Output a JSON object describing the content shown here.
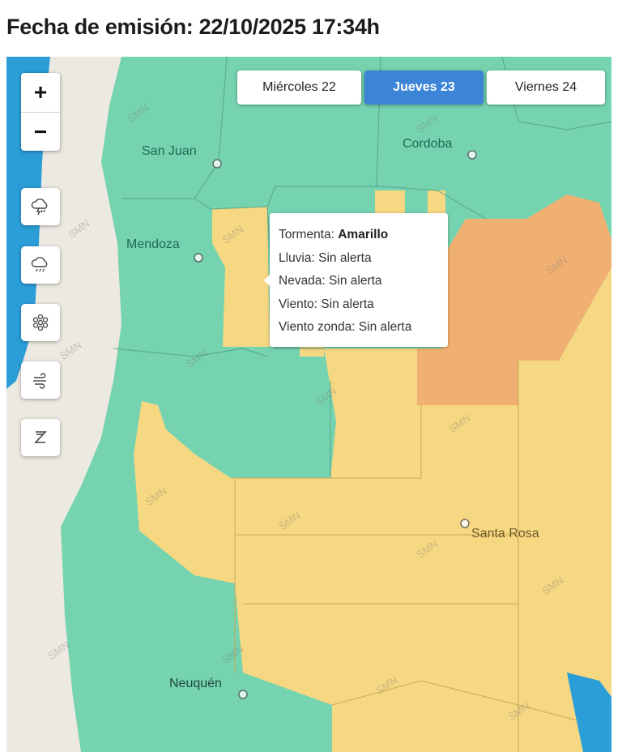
{
  "header": {
    "title": "Fecha de emisión: 22/10/2025 17:34h"
  },
  "days": [
    {
      "label": "Miércoles 22",
      "active": false
    },
    {
      "label": "Jueves 23",
      "active": true
    },
    {
      "label": "Viernes 24",
      "active": false
    }
  ],
  "zoom": {
    "in": "+",
    "out": "−"
  },
  "tools": [
    {
      "icon": "thunderstorm-icon"
    },
    {
      "icon": "rain-icon"
    },
    {
      "icon": "snowflake-icon"
    },
    {
      "icon": "wind-icon"
    },
    {
      "icon": "zonda-wind-icon"
    }
  ],
  "tooltip": {
    "rows": [
      {
        "label": "Tormenta: ",
        "value": "Amarillo"
      },
      {
        "label": "Lluvia: ",
        "value": "Sin alerta"
      },
      {
        "label": "Nevada: ",
        "value": "Sin alerta"
      },
      {
        "label": "Viento: ",
        "value": "Sin alerta"
      },
      {
        "label": "Viento zonda: ",
        "value": "Sin alerta"
      }
    ]
  },
  "cities": [
    "San Juan",
    "Cordoba",
    "Mendoza",
    "Santa Rosa",
    "Neuquén"
  ],
  "watermark": "SMN",
  "colors": {
    "no_alert": "#76d3b0",
    "yellow": "#f6d882",
    "orange": "#f0b071",
    "sea": "#2b9ed8",
    "active_day": "#3b84d6"
  }
}
